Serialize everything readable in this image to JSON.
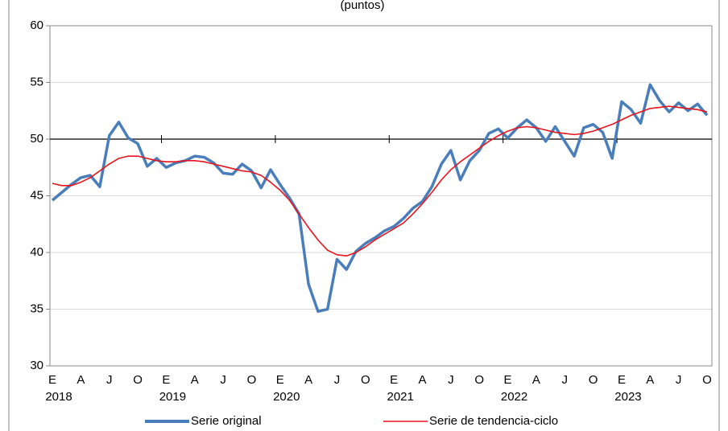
{
  "chart_data": {
    "type": "line",
    "subtitle": "(puntos)",
    "categories": [
      "E",
      null,
      null,
      "A",
      null,
      null,
      "J",
      null,
      null,
      "O",
      null,
      null,
      "E",
      null,
      null,
      "A",
      null,
      null,
      "J",
      null,
      null,
      "O",
      null,
      null,
      "E",
      null,
      null,
      "A",
      null,
      null,
      "J",
      null,
      null,
      "O",
      null,
      null,
      "E",
      null,
      null,
      "A",
      null,
      null,
      "J",
      null,
      null,
      "O",
      null,
      null,
      "E",
      null,
      null,
      "A",
      null,
      null,
      "J",
      null,
      null,
      "O",
      null,
      null,
      "E",
      null,
      null,
      "A",
      null,
      null,
      "J",
      null,
      null,
      "O"
    ],
    "year_labels": [
      "2018",
      "2019",
      "2020",
      "2021",
      "2022",
      "2023"
    ],
    "series": [
      {
        "name": "Serie original",
        "color": "#4a7ebb",
        "values": [
          44.6,
          45.3,
          46.0,
          46.6,
          46.8,
          45.8,
          50.3,
          51.5,
          50.1,
          49.6,
          47.6,
          48.3,
          47.5,
          47.9,
          48.1,
          48.5,
          48.4,
          47.9,
          47.0,
          46.9,
          47.8,
          47.2,
          45.7,
          47.3,
          46.0,
          44.8,
          43.4,
          37.2,
          34.8,
          35.0,
          39.4,
          38.5,
          40.1,
          40.8,
          41.3,
          41.9,
          42.3,
          43.0,
          43.9,
          44.5,
          45.8,
          47.8,
          49.0,
          46.4,
          48.1,
          49.0,
          50.5,
          50.9,
          50.1,
          51.0,
          51.7,
          51.0,
          49.8,
          51.1,
          49.8,
          48.5,
          51.0,
          51.3,
          50.6,
          48.3,
          53.3,
          52.6,
          51.4,
          54.8,
          53.4,
          52.4,
          53.2,
          52.5,
          53.1,
          52.1
        ]
      },
      {
        "name": "Serie de tendencia-ciclo",
        "color": "#e8141b",
        "values": [
          46.1,
          45.9,
          45.9,
          46.2,
          46.6,
          47.2,
          47.8,
          48.3,
          48.5,
          48.5,
          48.3,
          48.1,
          48.0,
          48.0,
          48.1,
          48.1,
          48.0,
          47.8,
          47.6,
          47.4,
          47.2,
          47.1,
          46.8,
          46.2,
          45.5,
          44.6,
          43.4,
          42.2,
          41.1,
          40.2,
          39.8,
          39.7,
          40.0,
          40.5,
          41.1,
          41.6,
          42.1,
          42.6,
          43.4,
          44.3,
          45.3,
          46.4,
          47.3,
          48.0,
          48.6,
          49.2,
          49.8,
          50.3,
          50.7,
          51.0,
          51.1,
          51.0,
          50.8,
          50.6,
          50.5,
          50.4,
          50.5,
          50.7,
          51.0,
          51.3,
          51.7,
          52.1,
          52.4,
          52.7,
          52.8,
          52.9,
          52.8,
          52.7,
          52.6,
          52.4
        ]
      }
    ],
    "ylim": [
      30,
      60
    ],
    "yticks": [
      30,
      35,
      40,
      45,
      50,
      55,
      60
    ],
    "grid": true,
    "x_axis_crosses": 50,
    "legend": "bottom"
  }
}
